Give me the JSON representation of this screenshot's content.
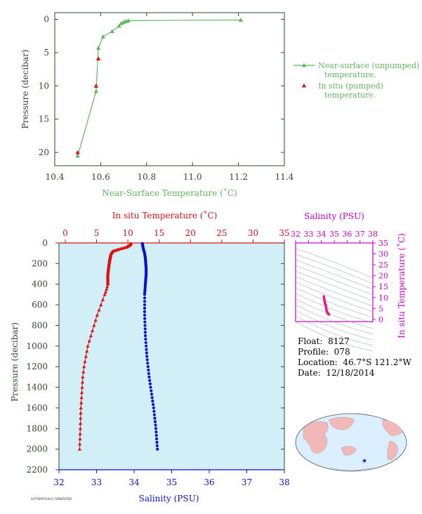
{
  "colors": {
    "near_surface": "#5fb85f",
    "in_situ": "#dd1111",
    "salinity": "#1010cc",
    "axis_green": "#2e4a2e",
    "plot_bg": "#d2eef7",
    "magenta": "#cc00cc",
    "land": "#f2b8b8",
    "ocean": "#dcefff"
  },
  "icons": {
    "float_marker": "star-icon"
  },
  "info": {
    "float_label": "Float:",
    "float_value": "8127",
    "profile_label": "Profile:",
    "profile_value": "078",
    "location_label": "Location:",
    "location_value": "46.7°S  121.2°W",
    "date_label": "Date:",
    "date_value": "12/18/2014"
  },
  "footer_text": "AUTOMATICALLY GENERATED",
  "chart_data": [
    {
      "type": "line",
      "xlabel": "Near-Surface Temperature (˚C)",
      "ylabel": "Pressure (decibar)",
      "xlim": [
        10.4,
        11.4
      ],
      "ylim": [
        22,
        -1
      ],
      "xticks": [
        "10.4",
        "10.6",
        "10.8",
        "11.0",
        "11.2",
        "11.4"
      ],
      "yticks": [
        "0",
        "5",
        "10",
        "15",
        "20"
      ],
      "legend": {
        "position": "right",
        "entries": [
          "Near-surface (unpumped)\ntemperature.",
          "In situ (pumped)\ntemperature."
        ]
      },
      "series": [
        {
          "name": "Near-surface (unpumped)\ntemperature.",
          "marker": "triangle",
          "line": true,
          "x": [
            11.21,
            10.72,
            10.71,
            10.7,
            10.69,
            10.68,
            10.65,
            10.61,
            10.59,
            10.58,
            10.5
          ],
          "y": [
            0.1,
            0.2,
            0.3,
            0.4,
            0.6,
            1.0,
            1.8,
            2.6,
            4.3,
            10.8,
            20.5
          ]
        },
        {
          "name": "In situ (pumped)\ntemperature.",
          "marker": "triangle",
          "line": false,
          "x": [
            10.59,
            10.58,
            10.5
          ],
          "y": [
            5.9,
            10.0,
            20.0
          ]
        }
      ]
    },
    {
      "type": "scatter",
      "x_top_label": "In situ Temperature (˚C)",
      "x_bottom_label": "Salinity (PSU)",
      "ylabel": "Pressure (decibar)",
      "temp_lim": [
        -1,
        35
      ],
      "sal_lim": [
        32,
        38
      ],
      "ylim": [
        2200,
        0
      ],
      "temp_ticks": [
        "0",
        "5",
        "10",
        "15",
        "20",
        "25",
        "30",
        "35"
      ],
      "sal_ticks": [
        "32",
        "33",
        "34",
        "35",
        "36",
        "37",
        "38"
      ],
      "yticks": [
        "0",
        "200",
        "400",
        "600",
        "800",
        "1000",
        "1200",
        "1400",
        "1600",
        "1800",
        "2000",
        "2200"
      ],
      "temperature_profile": {
        "pressure": [
          5,
          20,
          40,
          60,
          80,
          100,
          130,
          160,
          200,
          250,
          300,
          350,
          400,
          450,
          500,
          600,
          700,
          800,
          900,
          1000,
          1100,
          1200,
          1300,
          1400,
          1500,
          1600,
          1700,
          1800,
          1900,
          2000
        ],
        "temp": [
          10.5,
          10.3,
          9.8,
          8.6,
          7.6,
          7.3,
          7.2,
          7.1,
          7.0,
          6.9,
          6.8,
          6.8,
          6.8,
          6.6,
          6.3,
          5.7,
          5.1,
          4.6,
          4.1,
          3.6,
          3.3,
          3.0,
          2.8,
          2.7,
          2.6,
          2.5,
          2.45,
          2.4,
          2.35,
          2.3
        ]
      },
      "salinity_profile": {
        "pressure": [
          5,
          50,
          100,
          150,
          200,
          250,
          300,
          350,
          400,
          450,
          500,
          600,
          700,
          800,
          900,
          1000,
          1100,
          1200,
          1300,
          1400,
          1500,
          1600,
          1700,
          1800,
          1900,
          2000
        ],
        "sal": [
          34.22,
          34.24,
          34.28,
          34.3,
          34.31,
          34.32,
          34.32,
          34.31,
          34.3,
          34.29,
          34.28,
          34.28,
          34.28,
          34.29,
          34.3,
          34.32,
          34.34,
          34.37,
          34.4,
          34.44,
          34.48,
          34.52,
          34.55,
          34.58,
          34.6,
          34.62
        ]
      }
    },
    {
      "type": "scatter",
      "xlabel": "Salinity (PSU)",
      "ylabel": "In situ Temperature (˚C)",
      "xlim": [
        32,
        38
      ],
      "ylim": [
        -1,
        35
      ],
      "xticks": [
        "32",
        "33",
        "34",
        "35",
        "36",
        "37",
        "38"
      ],
      "yticks": [
        "0",
        "5",
        "10",
        "15",
        "20",
        "25",
        "30",
        "35"
      ],
      "x": [
        34.2,
        34.22,
        34.25,
        34.28,
        34.3,
        34.32,
        34.34,
        34.36,
        34.38,
        34.4,
        34.45,
        34.5,
        34.55,
        34.6
      ],
      "y": [
        10.5,
        9.5,
        8.5,
        7.3,
        7.0,
        6.9,
        6.6,
        6.0,
        5.1,
        4.1,
        3.3,
        2.8,
        2.5,
        2.3
      ]
    }
  ]
}
